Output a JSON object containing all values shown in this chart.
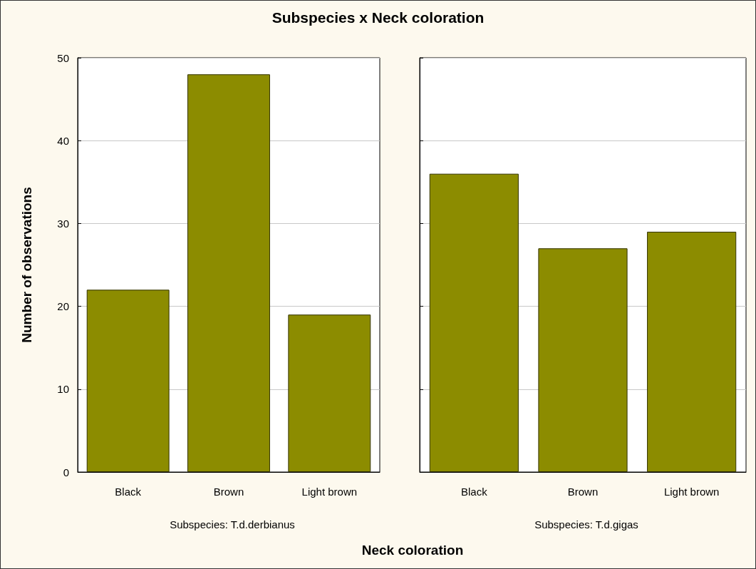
{
  "chart_data": [
    {
      "type": "bar",
      "title": "Subspecies x Neck coloration",
      "subtitle": "Subspecies: T.d.derbianus",
      "xlabel": "Neck coloration",
      "ylabel": "Number of observations",
      "categories": [
        "Black",
        "Brown",
        "Light brown"
      ],
      "series": [
        {
          "color": "#8c8c00",
          "values": [
            22,
            48,
            19
          ]
        }
      ],
      "ylim": [
        0,
        50
      ],
      "yticks": [
        0,
        10,
        20,
        30,
        40,
        50
      ],
      "grid": "y"
    },
    {
      "type": "bar",
      "subtitle": "Subspecies: T.d.gigas",
      "categories": [
        "Black",
        "Brown",
        "Light brown"
      ],
      "series": [
        {
          "color": "#8c8c00",
          "values": [
            36,
            27,
            29
          ]
        }
      ],
      "ylim": [
        0,
        50
      ],
      "yticks": [
        0,
        10,
        20,
        30,
        40,
        50
      ],
      "grid": "y",
      "tick_labels": "x"
    }
  ]
}
